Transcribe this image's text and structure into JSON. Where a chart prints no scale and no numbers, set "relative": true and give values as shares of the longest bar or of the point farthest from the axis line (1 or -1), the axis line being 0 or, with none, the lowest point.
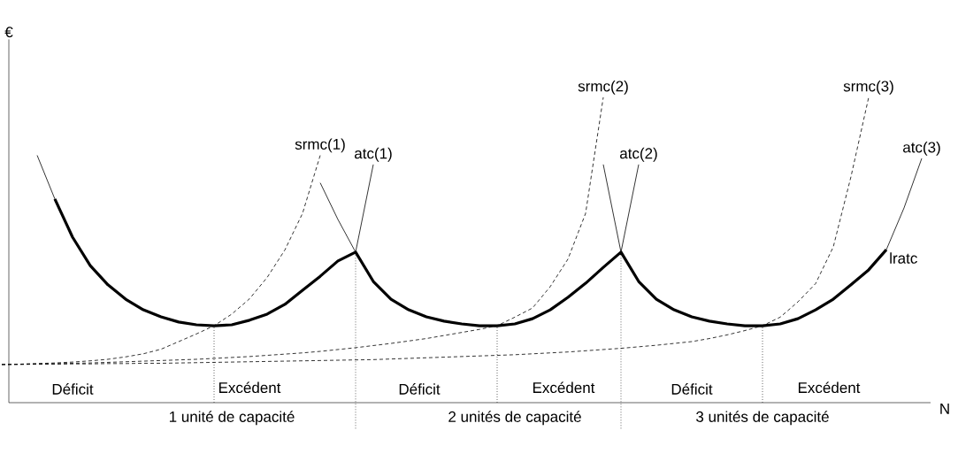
{
  "chart_data": {
    "type": "line",
    "relative": true,
    "xlabel": "N",
    "ylabel": "€",
    "line_style": "solid",
    "categories": [
      null,
      null,
      null,
      null,
      null,
      null,
      null,
      null,
      null,
      null,
      null,
      null,
      null,
      null,
      null,
      null,
      null,
      null,
      null,
      null,
      null,
      null,
      null,
      null,
      null,
      null,
      null,
      null,
      null,
      null,
      null,
      null,
      null,
      null,
      null,
      null,
      null,
      null,
      null,
      null,
      null,
      null,
      null,
      null,
      null,
      null,
      null,
      null,
      null,
      null,
      null,
      null,
      null
    ],
    "series": [
      {
        "name": "lratc",
        "color": "#000000",
        "values": [
          null,
          null,
          null,
          0.667,
          0.542,
          0.449,
          0.386,
          0.339,
          0.304,
          0.281,
          0.264,
          0.255,
          0.252,
          0.255,
          0.27,
          0.29,
          0.322,
          0.368,
          0.414,
          0.464,
          0.493,
          0.397,
          0.339,
          0.304,
          0.281,
          0.267,
          0.258,
          0.252,
          0.252,
          0.258,
          0.275,
          0.304,
          0.345,
          0.391,
          0.443,
          0.493,
          0.397,
          0.339,
          0.304,
          0.281,
          0.267,
          0.258,
          0.252,
          0.252,
          0.258,
          0.275,
          0.304,
          0.339,
          0.386,
          0.435,
          0.501,
          null,
          null
        ]
      },
      {
        "name": "srmc(1)",
        "color": "#000000",
        "line_style": "dashed",
        "values": [
          0.125,
          0.126,
          0.128,
          0.13,
          0.133,
          0.137,
          0.142,
          0.15,
          0.16,
          0.175,
          0.2,
          0.225,
          0.252,
          0.29,
          0.34,
          0.41,
          0.5,
          0.62,
          0.81,
          null,
          null,
          null,
          null,
          null,
          null,
          null,
          null,
          null,
          null,
          null,
          null,
          null,
          null,
          null,
          null,
          null,
          null,
          null,
          null,
          null,
          null,
          null,
          null,
          null,
          null,
          null,
          null,
          null,
          null,
          null,
          null,
          null,
          null
        ]
      },
      {
        "name": "atc(1)",
        "color": "#000000",
        "values": [
          null,
          null,
          0.81,
          0.667,
          0.542,
          0.449,
          0.386,
          0.339,
          0.304,
          0.281,
          0.264,
          0.255,
          0.252,
          0.255,
          0.27,
          0.29,
          0.322,
          0.368,
          0.414,
          0.464,
          0.493,
          0.78,
          null,
          null,
          null,
          null,
          null,
          null,
          null,
          null,
          null,
          null,
          null,
          null,
          null,
          null,
          null,
          null,
          null,
          null,
          null,
          null,
          null,
          null,
          null,
          null,
          null,
          null,
          null,
          null,
          null,
          null,
          null
        ]
      },
      {
        "name": "srmc(2)",
        "color": "#000000",
        "line_style": "dashed",
        "values": [
          0.125,
          0.126,
          0.127,
          0.128,
          0.129,
          0.13,
          0.132,
          0.134,
          0.136,
          0.138,
          0.14,
          0.142,
          0.145,
          0.148,
          0.151,
          0.155,
          0.159,
          0.163,
          0.168,
          0.174,
          0.18,
          0.187,
          0.194,
          0.202,
          0.21,
          0.22,
          0.23,
          0.24,
          0.252,
          0.28,
          0.31,
          0.38,
          0.47,
          0.62,
          1.0,
          null,
          null,
          null,
          null,
          null,
          null,
          null,
          null,
          null,
          null,
          null,
          null,
          null,
          null,
          null,
          null,
          null,
          null
        ]
      },
      {
        "name": "atc(2)",
        "color": "#000000",
        "values": [
          null,
          null,
          null,
          null,
          null,
          null,
          null,
          null,
          null,
          null,
          null,
          null,
          null,
          null,
          null,
          null,
          null,
          null,
          0.72,
          0.6,
          0.493,
          0.397,
          0.339,
          0.304,
          0.281,
          0.267,
          0.258,
          0.252,
          0.252,
          0.258,
          0.275,
          0.304,
          0.345,
          0.391,
          0.443,
          0.493,
          0.78,
          null,
          null,
          null,
          null,
          null,
          null,
          null,
          null,
          null,
          null,
          null,
          null,
          null,
          null,
          null,
          null
        ]
      },
      {
        "name": "srmc(3)",
        "color": "#000000",
        "line_style": "dashed",
        "values": [
          0.125,
          0.125,
          0.126,
          0.126,
          0.127,
          0.127,
          0.128,
          0.128,
          0.129,
          0.129,
          0.13,
          0.131,
          0.132,
          0.133,
          0.134,
          0.135,
          0.136,
          0.137,
          0.138,
          0.139,
          0.14,
          0.141,
          0.143,
          0.145,
          0.147,
          0.149,
          0.151,
          0.153,
          0.155,
          0.157,
          0.16,
          0.163,
          0.166,
          0.17,
          0.174,
          0.178,
          0.183,
          0.188,
          0.194,
          0.2,
          0.21,
          0.222,
          0.236,
          0.252,
          0.28,
          0.33,
          0.39,
          0.51,
          0.74,
          1.0,
          null,
          null,
          null
        ]
      },
      {
        "name": "atc(3)",
        "color": "#000000",
        "values": [
          null,
          null,
          null,
          null,
          null,
          null,
          null,
          null,
          null,
          null,
          null,
          null,
          null,
          null,
          null,
          null,
          null,
          null,
          null,
          null,
          null,
          null,
          null,
          null,
          null,
          null,
          null,
          null,
          null,
          null,
          null,
          null,
          null,
          null,
          0.78,
          0.493,
          0.397,
          0.339,
          0.304,
          0.281,
          0.267,
          0.258,
          0.252,
          0.252,
          0.258,
          0.275,
          0.304,
          0.339,
          0.386,
          0.435,
          0.501,
          0.638,
          0.8
        ]
      }
    ],
    "annotations": [
      "Déficit",
      "Excédent",
      "Déficit",
      "Excédent",
      "Déficit",
      "Excédent",
      "1 unité de capacité",
      "2 unités de capacité",
      "3 unités de capacité"
    ]
  }
}
